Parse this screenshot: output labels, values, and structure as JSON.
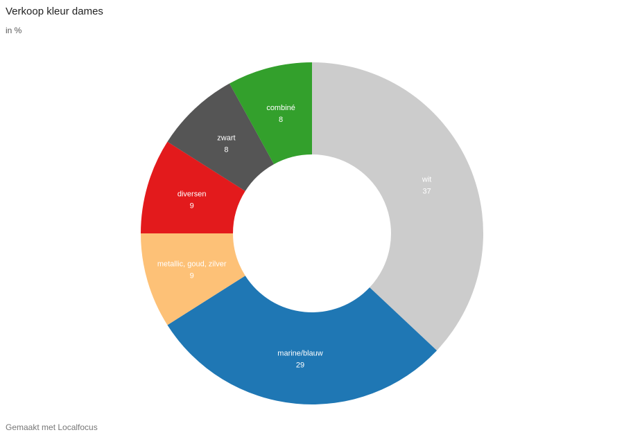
{
  "header": {
    "title": "Verkoop kleur dames",
    "subtitle": "in %"
  },
  "footer": {
    "credit": "Gemaakt met Localfocus"
  },
  "chart_data": {
    "type": "pie",
    "donut": true,
    "categories": [
      "wit",
      "marine/blauw",
      "metallic, goud, zilver",
      "diversen",
      "zwart",
      "combiné"
    ],
    "values": [
      37,
      29,
      9,
      9,
      8,
      8
    ],
    "colors": [
      "#cccccc",
      "#1f77b4",
      "#fdc177",
      "#e31a1c",
      "#555555",
      "#33a02c"
    ],
    "label_colors": [
      "#ffffff",
      "#ffffff",
      "#ffffff",
      "#ffffff",
      "#ffffff",
      "#ffffff"
    ],
    "start": "top",
    "direction": "clockwise",
    "legend": "none"
  }
}
